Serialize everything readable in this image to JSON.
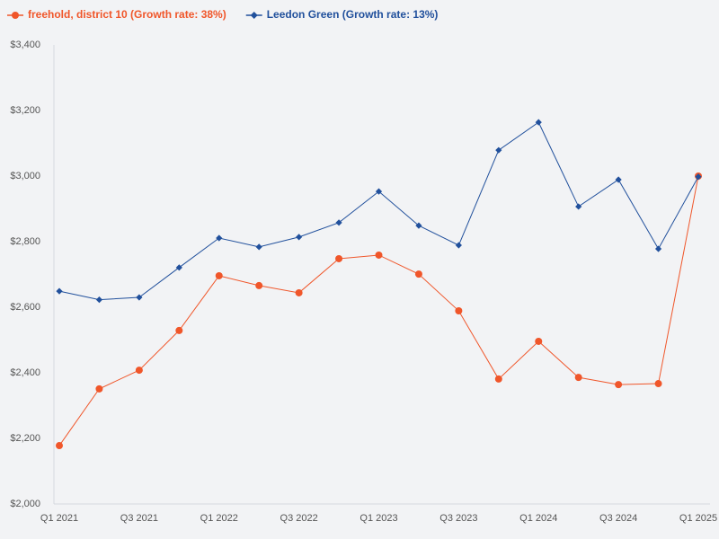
{
  "chart_data": {
    "type": "line",
    "categories": [
      "Q1 2021",
      null,
      "Q3 2021",
      null,
      "Q1 2022",
      null,
      "Q3 2022",
      null,
      "Q1 2023",
      null,
      "Q3 2023",
      null,
      "Q1 2024",
      null,
      "Q3 2024",
      null,
      "Q1 2025"
    ],
    "series": [
      {
        "name": "freehold, district 10 (Growth rate: 38%)",
        "color": "#f0562a",
        "marker": "circle",
        "values": [
          2178,
          2351,
          2408,
          2529,
          2696,
          2666,
          2644,
          2748,
          2759,
          2701,
          2589,
          2381,
          2496,
          2386,
          2364,
          2367,
          3000
        ]
      },
      {
        "name": "Leedon Green (Growth rate: 13%)",
        "color": "#21509c",
        "marker": "diamond",
        "values": [
          2649,
          2623,
          2630,
          2721,
          2811,
          2784,
          2814,
          2858,
          2953,
          2849,
          2789,
          3079,
          3164,
          2907,
          2989,
          2778,
          2998
        ]
      }
    ],
    "ylim": [
      2000,
      3400
    ],
    "yticks": [
      {
        "value": 2000,
        "label": "$2,000"
      },
      {
        "value": 2200,
        "label": "$2,200"
      },
      {
        "value": 2400,
        "label": "$2,400"
      },
      {
        "value": 2600,
        "label": "$2,600"
      },
      {
        "value": 2800,
        "label": "$2,800"
      },
      {
        "value": 3000,
        "label": "$3,000"
      },
      {
        "value": 3200,
        "label": "$3,200"
      },
      {
        "value": 3400,
        "label": "$3,400"
      }
    ],
    "grid": false,
    "legend": "top-left"
  }
}
